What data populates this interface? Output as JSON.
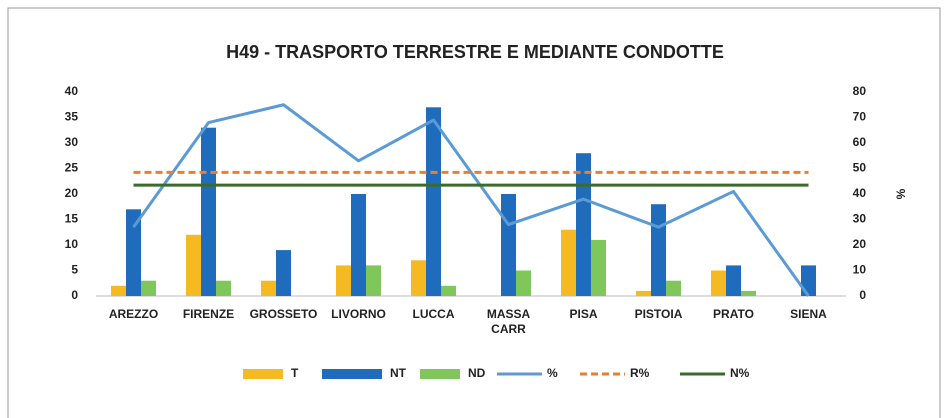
{
  "chart_data": {
    "type": "bar",
    "title": "H49 - TRASPORTO TERRESTRE E MEDIANTE CONDOTTE",
    "categories": [
      "AREZZO",
      "FIRENZE",
      "GROSSETO",
      "LIVORNO",
      "LUCCA",
      "MASSA CARR",
      "PISA",
      "PISTOIA",
      "PRATO",
      "SIENA"
    ],
    "series": [
      {
        "name": "T",
        "color": "#f5b921",
        "values": [
          2,
          12,
          3,
          6,
          7,
          0,
          13,
          1,
          5,
          0
        ]
      },
      {
        "name": "NT",
        "color": "#1f6cbd",
        "values": [
          17,
          33,
          9,
          20,
          37,
          20,
          28,
          18,
          6,
          6
        ]
      },
      {
        "name": "ND",
        "color": "#7fc75b",
        "values": [
          3,
          3,
          0,
          6,
          2,
          5,
          11,
          3,
          1,
          0
        ]
      },
      {
        "name": "%",
        "color": "#5b9bd5",
        "kind": "line",
        "axis": "y2",
        "values": [
          27,
          68,
          75,
          53,
          69,
          28,
          38,
          27,
          41,
          0
        ]
      },
      {
        "name": "R%",
        "color": "#ed7d31",
        "kind": "line",
        "dashed": true,
        "axis": "y2",
        "values": [
          48.5,
          48.5,
          48.5,
          48.5,
          48.5,
          48.5,
          48.5,
          48.5,
          48.5,
          48.5
        ]
      },
      {
        "name": "N%",
        "color": "#3b6b2c",
        "kind": "line",
        "axis": "y2",
        "values": [
          43.5,
          43.5,
          43.5,
          43.5,
          43.5,
          43.5,
          43.5,
          43.5,
          43.5,
          43.5
        ]
      }
    ],
    "ylim": [
      0,
      40
    ],
    "yticks": [
      0,
      5,
      10,
      15,
      20,
      25,
      30,
      35,
      40
    ],
    "y2lim": [
      0,
      80
    ],
    "y2ticks": [
      0,
      10,
      20,
      30,
      40,
      50,
      60,
      70,
      80
    ],
    "y2label": "%",
    "grid": false,
    "legend": "bottom"
  }
}
